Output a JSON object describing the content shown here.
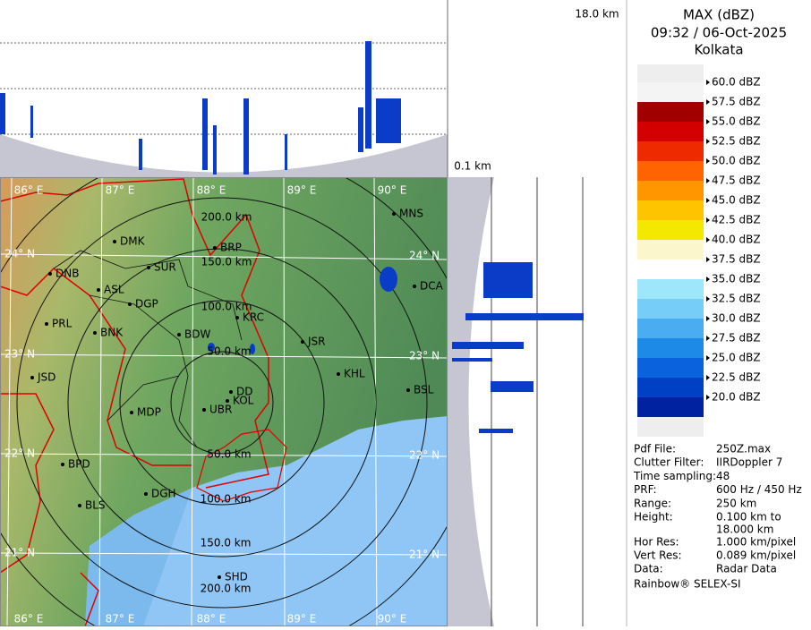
{
  "header": {
    "top_height": "18.0 km",
    "bottom_height": "0.1 km"
  },
  "legend": {
    "title": "MAX (dBZ)",
    "time": "09:32 / 06-Oct-2025",
    "station": "Kolkata",
    "labels": [
      "60.0 dBZ",
      "57.5 dBZ",
      "55.0 dBZ",
      "52.5 dBZ",
      "50.0 dBZ",
      "47.5 dBZ",
      "45.0 dBZ",
      "42.5 dBZ",
      "40.0 dBZ",
      "37.5 dBZ",
      "35.0 dBZ",
      "32.5 dBZ",
      "30.0 dBZ",
      "27.5 dBZ",
      "25.0 dBZ",
      "22.5 dBZ",
      "20.0 dBZ"
    ],
    "band_colors": [
      "#f4f4f4",
      "#a00000",
      "#d20000",
      "#ee2a00",
      "#ff6400",
      "#ff9600",
      "#ffc400",
      "#f5e800",
      "#fbf6cc",
      "#ffffff",
      "#9ee6fa",
      "#76cdf7",
      "#4aadf2",
      "#1e8ae8",
      "#0a63dc",
      "#0040c4",
      "#0022a0"
    ]
  },
  "info": {
    "rows": [
      [
        "Pdf File:",
        "250Z.max"
      ],
      [
        "Clutter Filter:",
        "IIRDoppler 7"
      ],
      [
        "Time sampling:",
        "48"
      ],
      [
        "PRF:",
        "600 Hz / 450 Hz"
      ],
      [
        "Range:",
        "250 km"
      ],
      [
        "Height:",
        "0.100 km to",
        "18.000 km"
      ],
      [
        "Hor Res:",
        "1.000 km/pixel"
      ],
      [
        "Vert Res:",
        "0.089 km/pixel"
      ],
      [
        "Data:",
        "Radar Data"
      ]
    ],
    "footer": "Rainbow® SELEX-SI"
  },
  "map": {
    "lon_labels": [
      "86° E",
      "87° E",
      "88° E",
      "89° E",
      "90° E"
    ],
    "lat_labels": [
      "24° N",
      "23° N",
      "22° N",
      "21° N"
    ],
    "cities": [
      "MNS",
      "DMK",
      "BRP",
      "DNB",
      "SUR",
      "DCA",
      "ASL",
      "DGP",
      "PRL",
      "BNK",
      "KRC",
      "BDW",
      "JSR",
      "KHL",
      "JSD",
      "DD",
      "BSL",
      "MDP",
      "UBR",
      "KOL",
      "BPD",
      "DGH",
      "BLS",
      "SHD"
    ],
    "range_labels": [
      "200.0 km",
      "150.0 km",
      "100.0 km",
      "50.0 km",
      "50.0 km",
      "100.0 km",
      "150.0 km",
      "200.0 km"
    ]
  }
}
